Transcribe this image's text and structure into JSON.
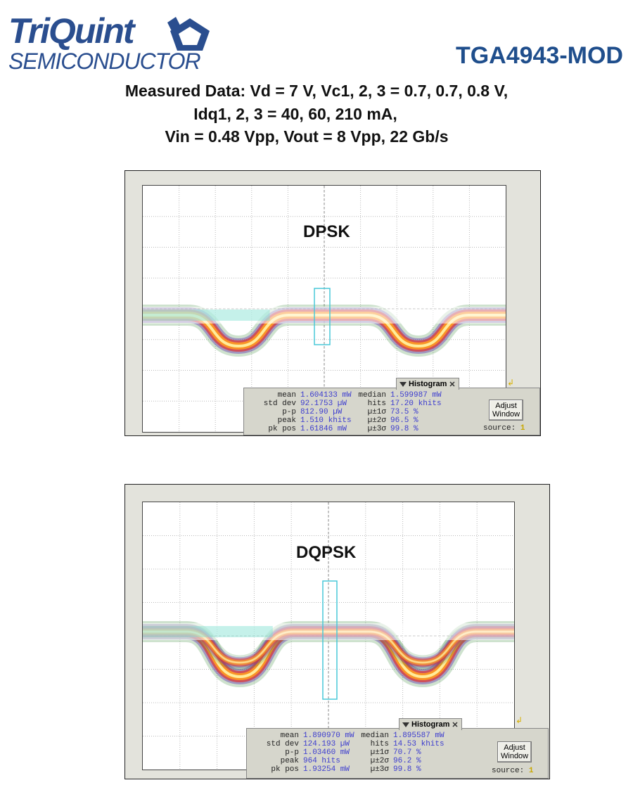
{
  "header": {
    "logo_line1": "TriQuint",
    "logo_line2": "SEMICONDUCTOR",
    "part_number": "TGA4943-MOD",
    "measured_line1": "Measured Data:  Vd = 7 V, Vc1, 2, 3 = 0.7, 0.7, 0.8 V,",
    "measured_line2": "Idq1, 2, 3 = 40, 60, 210 mA,",
    "measured_line3": "Vin = 0.48 Vpp, Vout = 8 Vpp, 22 Gb/s"
  },
  "colors": {
    "brand": "#2a4e8f",
    "value_text": "#3c3ccf",
    "marker_box": "#49c8d8"
  },
  "panels": [
    {
      "label": "DPSK",
      "histogram_title": "Histogram",
      "adjust_button": [
        "Adjust",
        "Window"
      ],
      "source_label": "source:",
      "source_value": "1",
      "left_stats": [
        {
          "label": "mean",
          "value": "1.604133 mW"
        },
        {
          "label": "std dev",
          "value": "92.1753 µW"
        },
        {
          "label": "p-p",
          "value": "812.90 µW"
        },
        {
          "label": "peak",
          "value": "1.510 khits"
        },
        {
          "label": "pk pos",
          "value": "1.61846 mW"
        }
      ],
      "right_stats": [
        {
          "label": "median",
          "value": "1.599987 mW"
        },
        {
          "label": "hits",
          "value": "17.20 khits"
        },
        {
          "label": "µ±1σ",
          "value": "73.5 %"
        },
        {
          "label": "µ±2σ",
          "value": "96.5 %"
        },
        {
          "label": "µ±3σ",
          "value": "99.8 %"
        }
      ]
    },
    {
      "label": "DQPSK",
      "histogram_title": "Histogram",
      "adjust_button": [
        "Adjust",
        "Window"
      ],
      "source_label": "source:",
      "source_value": "1",
      "left_stats": [
        {
          "label": "mean",
          "value": "1.890970 mW"
        },
        {
          "label": "std dev",
          "value": "124.193 µW"
        },
        {
          "label": "p-p",
          "value": "1.03460 mW"
        },
        {
          "label": "peak",
          "value": "964 hits"
        },
        {
          "label": "pk pos",
          "value": "1.93254 mW"
        }
      ],
      "right_stats": [
        {
          "label": "median",
          "value": "1.895587 mW"
        },
        {
          "label": "hits",
          "value": "14.53 khits"
        },
        {
          "label": "µ±1σ",
          "value": "70.7 %"
        },
        {
          "label": "µ±2σ",
          "value": "96.2 %"
        },
        {
          "label": "µ±3σ",
          "value": "99.8 %"
        }
      ]
    }
  ]
}
